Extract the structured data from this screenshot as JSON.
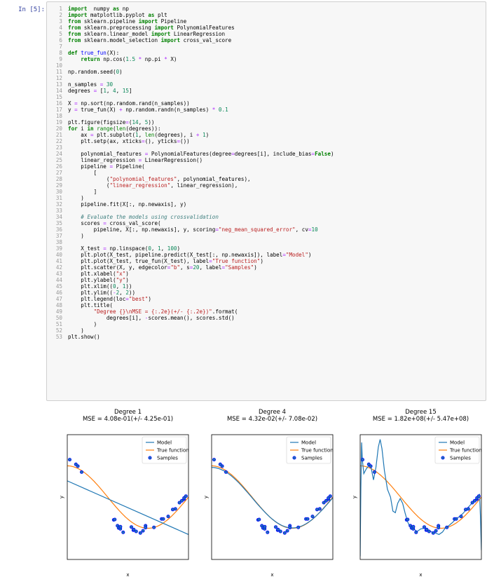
{
  "cell": {
    "prompt": "In [5]:"
  },
  "code_lines": [
    [
      [
        "kw",
        "import"
      ],
      [
        "",
        "  numpy "
      ],
      [
        "kw",
        "as"
      ],
      [
        "",
        " np"
      ]
    ],
    [
      [
        "kw",
        "import"
      ],
      [
        "",
        " matplotlib.pyplot "
      ],
      [
        "kw",
        "as"
      ],
      [
        "",
        " plt"
      ]
    ],
    [
      [
        "kw",
        "from"
      ],
      [
        "",
        " sklearn.pipeline "
      ],
      [
        "kw",
        "import"
      ],
      [
        "",
        " Pipeline"
      ]
    ],
    [
      [
        "kw",
        "from"
      ],
      [
        "",
        " sklearn.preprocessing "
      ],
      [
        "kw",
        "import"
      ],
      [
        "",
        " PolynomialFeatures"
      ]
    ],
    [
      [
        "kw",
        "from"
      ],
      [
        "",
        " sklearn.linear_model "
      ],
      [
        "kw",
        "import"
      ],
      [
        "",
        " LinearRegression"
      ]
    ],
    [
      [
        "kw",
        "from"
      ],
      [
        "",
        " sklearn.model_selection "
      ],
      [
        "kw",
        "import"
      ],
      [
        "",
        " cross_val_score"
      ]
    ],
    [],
    [
      [
        "kw",
        "def"
      ],
      [
        "",
        " "
      ],
      [
        "fn",
        "true_fun"
      ],
      [
        "",
        "(X):"
      ]
    ],
    [
      [
        "",
        "    "
      ],
      [
        "kw",
        "return"
      ],
      [
        "",
        " np.cos("
      ],
      [
        "nm",
        "1.5"
      ],
      [
        "",
        " "
      ],
      [
        "op",
        "*"
      ],
      [
        "",
        " np.pi "
      ],
      [
        "op",
        "*"
      ],
      [
        "",
        " X)"
      ]
    ],
    [],
    [
      [
        "",
        "np.random.seed("
      ],
      [
        "nm",
        "0"
      ],
      [
        "",
        ")"
      ]
    ],
    [],
    [
      [
        "",
        "n_samples "
      ],
      [
        "op",
        "="
      ],
      [
        "",
        " "
      ],
      [
        "nm",
        "30"
      ]
    ],
    [
      [
        "",
        "degrees "
      ],
      [
        "op",
        "="
      ],
      [
        "",
        " ["
      ],
      [
        "nm",
        "1"
      ],
      [
        "",
        ", "
      ],
      [
        "nm",
        "4"
      ],
      [
        "",
        ", "
      ],
      [
        "nm",
        "15"
      ],
      [
        "",
        "]"
      ]
    ],
    [],
    [
      [
        "",
        "X "
      ],
      [
        "op",
        "="
      ],
      [
        "",
        " np.sort(np.random.rand(n_samples))"
      ]
    ],
    [
      [
        "",
        "y "
      ],
      [
        "op",
        "="
      ],
      [
        "",
        " true_fun(X) "
      ],
      [
        "op",
        "+"
      ],
      [
        "",
        " np.random.randn(n_samples) "
      ],
      [
        "op",
        "*"
      ],
      [
        "",
        " "
      ],
      [
        "nm",
        "0.1"
      ]
    ],
    [],
    [
      [
        "",
        "plt.figure(figsize"
      ],
      [
        "op",
        "="
      ],
      [
        "",
        "("
      ],
      [
        "nm",
        "14"
      ],
      [
        "",
        ", "
      ],
      [
        "nm",
        "5"
      ],
      [
        "",
        "))"
      ]
    ],
    [
      [
        "kw",
        "for"
      ],
      [
        "",
        " i "
      ],
      [
        "kw",
        "in"
      ],
      [
        "",
        " "
      ],
      [
        "bi",
        "range"
      ],
      [
        "",
        "("
      ],
      [
        "bi",
        "len"
      ],
      [
        "",
        "(degrees)):"
      ]
    ],
    [
      [
        "",
        "    ax "
      ],
      [
        "op",
        "="
      ],
      [
        "",
        " plt.subplot("
      ],
      [
        "nm",
        "1"
      ],
      [
        "",
        ", "
      ],
      [
        "bi",
        "len"
      ],
      [
        "",
        "(degrees), i "
      ],
      [
        "op",
        "+"
      ],
      [
        "",
        " "
      ],
      [
        "nm",
        "1"
      ],
      [
        "",
        ")"
      ]
    ],
    [
      [
        "",
        "    plt.setp(ax, xticks"
      ],
      [
        "op",
        "="
      ],
      [
        "",
        "(), yticks"
      ],
      [
        "op",
        "="
      ],
      [
        "",
        "())"
      ]
    ],
    [],
    [
      [
        "",
        "    polynomial_features "
      ],
      [
        "op",
        "="
      ],
      [
        "",
        " PolynomialFeatures(degree"
      ],
      [
        "op",
        "="
      ],
      [
        "",
        "degrees[i], include_bias"
      ],
      [
        "op",
        "="
      ],
      [
        "kw",
        "False"
      ],
      [
        "",
        ")"
      ]
    ],
    [
      [
        "",
        "    linear_regression "
      ],
      [
        "op",
        "="
      ],
      [
        "",
        " LinearRegression()"
      ]
    ],
    [
      [
        "",
        "    pipeline "
      ],
      [
        "op",
        "="
      ],
      [
        "",
        " Pipeline("
      ]
    ],
    [
      [
        "",
        "        ["
      ]
    ],
    [
      [
        "",
        "            ("
      ],
      [
        "st",
        "\"polynomial_features\""
      ],
      [
        "",
        ", polynomial_features),"
      ]
    ],
    [
      [
        "",
        "            ("
      ],
      [
        "st",
        "\"linear_regression\""
      ],
      [
        "",
        ", linear_regression),"
      ]
    ],
    [
      [
        "",
        "        ]"
      ]
    ],
    [
      [
        "",
        "    )"
      ]
    ],
    [
      [
        "",
        "    pipeline.fit(X[:, np.newaxis], y)"
      ]
    ],
    [],
    [
      [
        "",
        "    "
      ],
      [
        "cm",
        "# Evaluate the models using crossvalidation"
      ]
    ],
    [
      [
        "",
        "    scores "
      ],
      [
        "op",
        "="
      ],
      [
        "",
        " cross_val_score("
      ]
    ],
    [
      [
        "",
        "        pipeline, X[:, np.newaxis], y, scoring"
      ],
      [
        "op",
        "="
      ],
      [
        "st",
        "\"neg_mean_squared_error\""
      ],
      [
        "",
        ", cv"
      ],
      [
        "op",
        "="
      ],
      [
        "nm",
        "10"
      ]
    ],
    [
      [
        "",
        "    )"
      ]
    ],
    [],
    [
      [
        "",
        "    X_test "
      ],
      [
        "op",
        "="
      ],
      [
        "",
        " np.linspace("
      ],
      [
        "nm",
        "0"
      ],
      [
        "",
        ", "
      ],
      [
        "nm",
        "1"
      ],
      [
        "",
        ", "
      ],
      [
        "nm",
        "100"
      ],
      [
        "",
        ")"
      ]
    ],
    [
      [
        "",
        "    plt.plot(X_test, pipeline.predict(X_test[:, np.newaxis]), label"
      ],
      [
        "op",
        "="
      ],
      [
        "st",
        "\"Model\""
      ],
      [
        "",
        ")"
      ]
    ],
    [
      [
        "",
        "    plt.plot(X_test, true_fun(X_test), label"
      ],
      [
        "op",
        "="
      ],
      [
        "st",
        "\"True function\""
      ],
      [
        "",
        ")"
      ]
    ],
    [
      [
        "",
        "    plt.scatter(X, y, edgecolor"
      ],
      [
        "op",
        "="
      ],
      [
        "st",
        "\"b\""
      ],
      [
        "",
        ", s"
      ],
      [
        "op",
        "="
      ],
      [
        "nm",
        "20"
      ],
      [
        "",
        ", label"
      ],
      [
        "op",
        "="
      ],
      [
        "st",
        "\"Samples\""
      ],
      [
        "",
        ")"
      ]
    ],
    [
      [
        "",
        "    plt.xlabel("
      ],
      [
        "st",
        "\"x\""
      ],
      [
        "",
        ")"
      ]
    ],
    [
      [
        "",
        "    plt.ylabel("
      ],
      [
        "st",
        "\"y\""
      ],
      [
        "",
        ")"
      ]
    ],
    [
      [
        "",
        "    plt.xlim(("
      ],
      [
        "nm",
        "0"
      ],
      [
        "",
        ", "
      ],
      [
        "nm",
        "1"
      ],
      [
        "",
        "))"
      ]
    ],
    [
      [
        "",
        "    plt.ylim(("
      ],
      [
        "op",
        "-"
      ],
      [
        "nm",
        "2"
      ],
      [
        "",
        ", "
      ],
      [
        "nm",
        "2"
      ],
      [
        "",
        "))"
      ]
    ],
    [
      [
        "",
        "    plt.legend(loc"
      ],
      [
        "op",
        "="
      ],
      [
        "st",
        "\"best\""
      ],
      [
        "",
        ")"
      ]
    ],
    [
      [
        "",
        "    plt.title("
      ]
    ],
    [
      [
        "",
        "        "
      ],
      [
        "st",
        "\"Degree {}\\nMSE = {:.2e}(+/- {:.2e})\""
      ],
      [
        "",
        ".format("
      ]
    ],
    [
      [
        "",
        "            degrees[i], "
      ],
      [
        "op",
        "-"
      ],
      [
        "",
        "scores.mean(), scores.std()"
      ]
    ],
    [
      [
        "",
        "        )"
      ]
    ],
    [
      [
        "",
        "    )"
      ]
    ],
    [
      [
        "",
        "plt.show()"
      ]
    ]
  ],
  "figure": {
    "colors": {
      "model": "#1f77b4",
      "true": "#ff7f0e",
      "sample_face": "#1f77b4",
      "sample_edge": "#0000ff"
    },
    "xlim": [
      0,
      1
    ],
    "ylim": [
      -2,
      2
    ],
    "samples": [
      [
        0.0202,
        1.2
      ],
      [
        0.071,
        1.05
      ],
      [
        0.0871,
        0.99
      ],
      [
        0.1183,
        0.8
      ],
      [
        0.3834,
        -0.73
      ],
      [
        0.3919,
        -0.72
      ],
      [
        0.4147,
        -0.92
      ],
      [
        0.4237,
        -0.99
      ],
      [
        0.4376,
        -1.02
      ],
      [
        0.4386,
        -0.95
      ],
      [
        0.4615,
        -1.13
      ],
      [
        0.5288,
        -0.96
      ],
      [
        0.5449,
        -1.06
      ],
      [
        0.5488,
        -1.04
      ],
      [
        0.568,
        -1.1
      ],
      [
        0.6028,
        -1.15
      ],
      [
        0.625,
        -1.08
      ],
      [
        0.6459,
        -0.92
      ],
      [
        0.6458,
        -0.98
      ],
      [
        0.7152,
        -0.97
      ],
      [
        0.7782,
        -0.7
      ],
      [
        0.7917,
        -0.7
      ],
      [
        0.8326,
        -0.62
      ],
      [
        0.87,
        -0.4
      ],
      [
        0.8918,
        -0.38
      ],
      [
        0.9256,
        -0.18
      ],
      [
        0.9447,
        -0.12
      ],
      [
        0.9637,
        -0.07
      ],
      [
        0.9636,
        -0.03
      ],
      [
        0.9786,
        0.03
      ]
    ],
    "panels": [
      {
        "title": "Degree 1",
        "subtitle": "MSE = 4.08e-01(+/- 4.25e-01)",
        "xlabel": "x",
        "ylabel": "y",
        "legend": [
          "Model",
          "True function",
          "Samples"
        ],
        "model": {
          "kind": "line",
          "points": [
            [
              0,
              0.52
            ],
            [
              1,
              -1.2
            ]
          ]
        }
      },
      {
        "title": "Degree 4",
        "subtitle": "MSE = 4.32e-02(+/- 7.08e-02)",
        "xlabel": "x",
        "ylabel": "y",
        "legend": [
          "Model",
          "True function",
          "Samples"
        ],
        "model": {
          "kind": "true_like",
          "points": []
        }
      },
      {
        "title": "Degree 15",
        "subtitle": "MSE = 1.82e+08(+/- 5.47e+08)",
        "xlabel": "x",
        "ylabel": "y",
        "legend": [
          "Model",
          "True function",
          "Samples"
        ],
        "model": {
          "kind": "polyline",
          "points": [
            [
              0.0,
              -1.9
            ],
            [
              0.006,
              0.3
            ],
            [
              0.012,
              1.75
            ],
            [
              0.018,
              1.2
            ],
            [
              0.03,
              0.75
            ],
            [
              0.05,
              0.9
            ],
            [
              0.07,
              1.0
            ],
            [
              0.09,
              0.95
            ],
            [
              0.11,
              0.55
            ],
            [
              0.13,
              0.95
            ],
            [
              0.15,
              1.6
            ],
            [
              0.165,
              1.85
            ],
            [
              0.18,
              1.55
            ],
            [
              0.2,
              0.85
            ],
            [
              0.225,
              0.25
            ],
            [
              0.25,
              0.0
            ],
            [
              0.27,
              -0.45
            ],
            [
              0.29,
              -0.5
            ],
            [
              0.31,
              -0.2
            ],
            [
              0.33,
              -0.05
            ],
            [
              0.35,
              -0.2
            ],
            [
              0.37,
              -0.5
            ],
            [
              0.39,
              -0.78
            ],
            [
              0.41,
              -0.95
            ],
            [
              0.43,
              -0.98
            ],
            [
              0.45,
              -1.05
            ],
            [
              0.47,
              -1.1
            ],
            [
              0.5,
              -1.02
            ],
            [
              0.53,
              -1.0
            ],
            [
              0.56,
              -1.05
            ],
            [
              0.59,
              -1.12
            ],
            [
              0.62,
              -1.15
            ],
            [
              0.65,
              -1.2
            ],
            [
              0.68,
              -1.12
            ],
            [
              0.7,
              -1.0
            ],
            [
              0.73,
              -0.92
            ],
            [
              0.76,
              -0.82
            ],
            [
              0.79,
              -0.7
            ],
            [
              0.82,
              -0.62
            ],
            [
              0.85,
              -0.52
            ],
            [
              0.88,
              -0.38
            ],
            [
              0.91,
              -0.25
            ],
            [
              0.94,
              -0.12
            ],
            [
              0.96,
              -0.05
            ],
            [
              0.975,
              0.0
            ],
            [
              0.985,
              0.1
            ],
            [
              0.992,
              -0.6
            ],
            [
              1.0,
              -1.7
            ]
          ]
        }
      }
    ]
  }
}
